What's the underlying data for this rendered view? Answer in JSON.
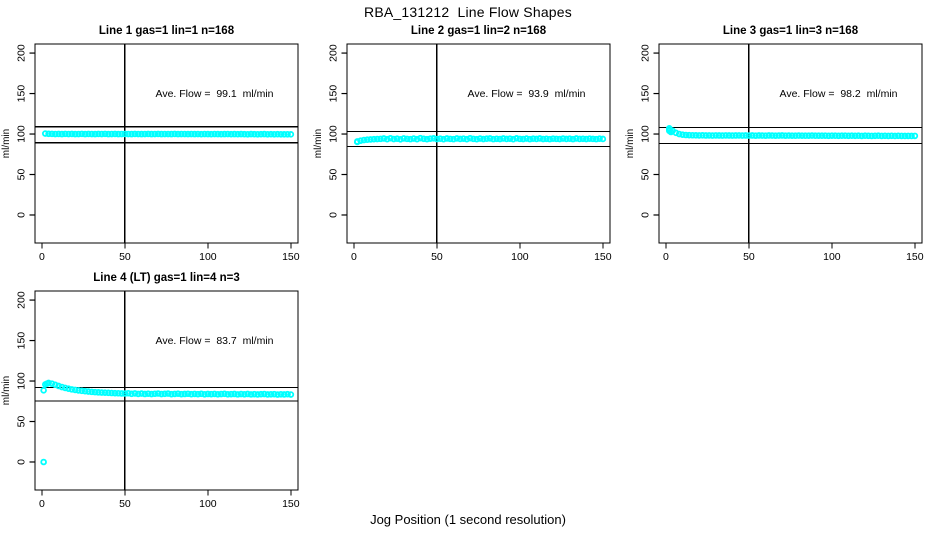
{
  "figure": {
    "title": "RBA_131212  Line Flow Shapes",
    "xlabel": "Jog Position (1 second resolution)"
  },
  "colors": {
    "points": "#00ffff",
    "axis": "#000000",
    "background": "#ffffff"
  },
  "chart_data": [
    {
      "type": "scatter",
      "title": "Line 1 gas=1 lin=1 n=168",
      "ylabel": "ml/min",
      "ave_flow": 99.1,
      "ave_flow_label": "Ave. Flow =  99.1  ml/min",
      "xlim": [
        -4.2,
        154.3
      ],
      "ylim": [
        -34.6,
        211.2
      ],
      "x_ticks": [
        0,
        50,
        100,
        150
      ],
      "y_ticks": [
        0,
        50,
        100,
        150,
        200
      ],
      "ref_upper": 109.0,
      "ref_lower": 89.2,
      "ref_vertical_x": 50,
      "x_start": 2,
      "x_step": 2,
      "y_values": [
        100.6,
        100.3,
        100.2,
        100.0,
        100.1,
        99.9,
        100.2,
        100.0,
        100.1,
        99.9,
        100.0,
        100.2,
        99.9,
        100.1,
        100.0,
        99.9,
        100.1,
        100.0,
        100.2,
        99.9,
        100.0,
        100.1,
        99.9,
        100.0,
        100.1,
        100.0,
        99.9,
        100.1,
        100.0,
        99.9,
        100.0,
        100.1,
        99.9,
        100.0,
        100.1,
        99.9,
        100.0,
        100.0,
        99.9,
        100.1,
        99.9,
        100.0,
        100.0,
        99.9,
        100.0,
        99.9,
        100.0,
        99.8,
        100.0,
        99.9,
        99.8,
        100.0,
        99.9,
        99.8,
        99.9,
        100.0,
        99.8,
        99.9,
        99.8,
        99.9,
        99.8,
        99.7,
        99.9,
        99.8,
        99.7,
        99.8,
        99.9,
        99.7,
        99.8,
        99.7,
        99.8,
        99.7,
        99.6,
        99.7,
        99.6
      ],
      "extra_points": []
    },
    {
      "type": "scatter",
      "title": "Line 2 gas=1 lin=2 n=168",
      "ylabel": "ml/min",
      "ave_flow": 93.9,
      "ave_flow_label": "Ave. Flow =  93.9  ml/min",
      "xlim": [
        -4.2,
        154.3
      ],
      "ylim": [
        -34.6,
        211.2
      ],
      "x_ticks": [
        0,
        50,
        100,
        150
      ],
      "y_ticks": [
        0,
        50,
        100,
        150,
        200
      ],
      "ref_upper": 103.3,
      "ref_lower": 84.5,
      "ref_vertical_x": 50,
      "x_start": 2,
      "x_step": 2,
      "y_values": [
        90.8,
        91.8,
        92.5,
        93.0,
        93.3,
        93.6,
        93.8,
        94.0,
        94.5,
        93.6,
        94.8,
        93.8,
        94.2,
        93.5,
        94.6,
        94.0,
        93.7,
        94.4,
        93.6,
        94.9,
        94.1,
        93.6,
        94.3,
        94.7,
        93.8,
        94.2,
        93.6,
        94.5,
        94.0,
        93.7,
        94.6,
        93.9,
        94.3,
        93.6,
        94.8,
        94.0,
        93.6,
        94.4,
        93.8,
        94.2,
        94.6,
        93.7,
        94.1,
        93.8,
        94.5,
        93.9,
        94.3,
        93.6,
        94.7,
        94.0,
        93.8,
        94.4,
        93.7,
        94.2,
        93.9,
        94.5,
        93.8,
        94.1,
        93.7,
        94.3,
        94.0,
        93.8,
        94.4,
        93.9,
        94.2,
        93.7,
        94.5,
        93.9,
        94.1,
        93.8,
        94.3,
        94.0,
        93.7,
        94.2,
        93.9
      ],
      "extra_points": [
        [
          2,
          90.2
        ]
      ]
    },
    {
      "type": "scatter",
      "title": "Line 3 gas=1 lin=3 n=168",
      "ylabel": "ml/min",
      "ave_flow": 98.2,
      "ave_flow_label": "Ave. Flow =  98.2  ml/min",
      "xlim": [
        -4.2,
        154.3
      ],
      "ylim": [
        -34.6,
        211.2
      ],
      "x_ticks": [
        0,
        50,
        100,
        150
      ],
      "y_ticks": [
        0,
        50,
        100,
        150,
        200
      ],
      "ref_upper": 108.0,
      "ref_lower": 88.4,
      "ref_vertical_x": 50,
      "x_start": 2,
      "x_step": 2,
      "y_values": [
        107.0,
        104.0,
        101.5,
        100.0,
        99.2,
        98.8,
        98.6,
        98.5,
        98.4,
        98.3,
        98.4,
        98.2,
        98.3,
        98.1,
        98.3,
        98.2,
        98.1,
        98.3,
        98.2,
        98.1,
        98.2,
        98.3,
        98.1,
        98.2,
        98.1,
        98.2,
        98.0,
        98.2,
        98.1,
        98.0,
        98.2,
        98.1,
        98.0,
        98.1,
        98.2,
        98.0,
        98.1,
        98.0,
        97.9,
        98.1,
        98.0,
        97.9,
        98.0,
        98.1,
        97.9,
        98.0,
        97.9,
        98.0,
        97.8,
        98.0,
        97.9,
        97.8,
        97.9,
        98.0,
        97.8,
        97.9,
        97.8,
        97.9,
        97.7,
        97.9,
        97.8,
        97.7,
        97.8,
        97.9,
        97.7,
        97.8,
        97.7,
        97.8,
        97.6,
        97.8,
        97.7,
        97.6,
        97.7,
        97.6,
        97.7
      ],
      "extra_points": [
        [
          2,
          106.0
        ],
        [
          2,
          104.0
        ],
        [
          3,
          102.5
        ]
      ]
    },
    {
      "type": "scatter",
      "title": "Line 4 (LT) gas=1 lin=4 n=3",
      "ylabel": "ml/min",
      "ave_flow": 83.7,
      "ave_flow_label": "Ave. Flow =  83.7  ml/min",
      "xlim": [
        -4.2,
        154.3
      ],
      "ylim": [
        -34.6,
        211.2
      ],
      "x_ticks": [
        0,
        50,
        100,
        150
      ],
      "y_ticks": [
        0,
        50,
        100,
        150,
        200
      ],
      "ref_upper": 92.1,
      "ref_lower": 75.3,
      "ref_vertical_x": 50,
      "x_start": 2,
      "x_step": 2,
      "y_values": [
        95.8,
        97.6,
        96.8,
        95.3,
        93.9,
        92.6,
        91.5,
        90.5,
        89.7,
        89.0,
        88.4,
        87.9,
        87.4,
        87.0,
        86.6,
        86.3,
        86.0,
        85.8,
        85.6,
        85.4,
        85.2,
        85.0,
        84.9,
        84.7,
        84.6,
        84.9,
        84.2,
        84.7,
        84.1,
        84.5,
        84.0,
        84.4,
        83.9,
        84.3,
        84.6,
        83.9,
        84.2,
        84.5,
        83.8,
        84.1,
        84.4,
        83.8,
        84.0,
        84.3,
        83.7,
        84.1,
        83.8,
        84.2,
        83.6,
        84.0,
        83.8,
        84.1,
        83.6,
        83.9,
        84.2,
        83.6,
        83.8,
        84.0,
        83.5,
        83.9,
        83.6,
        84.0,
        83.5,
        83.8,
        83.4,
        83.7,
        83.9,
        83.4,
        83.6,
        83.8,
        83.3,
        83.6,
        83.4,
        83.7,
        83.3
      ],
      "extra_points": [
        [
          1,
          0.0
        ],
        [
          1,
          88.5
        ],
        [
          3,
          96.8
        ]
      ]
    }
  ]
}
